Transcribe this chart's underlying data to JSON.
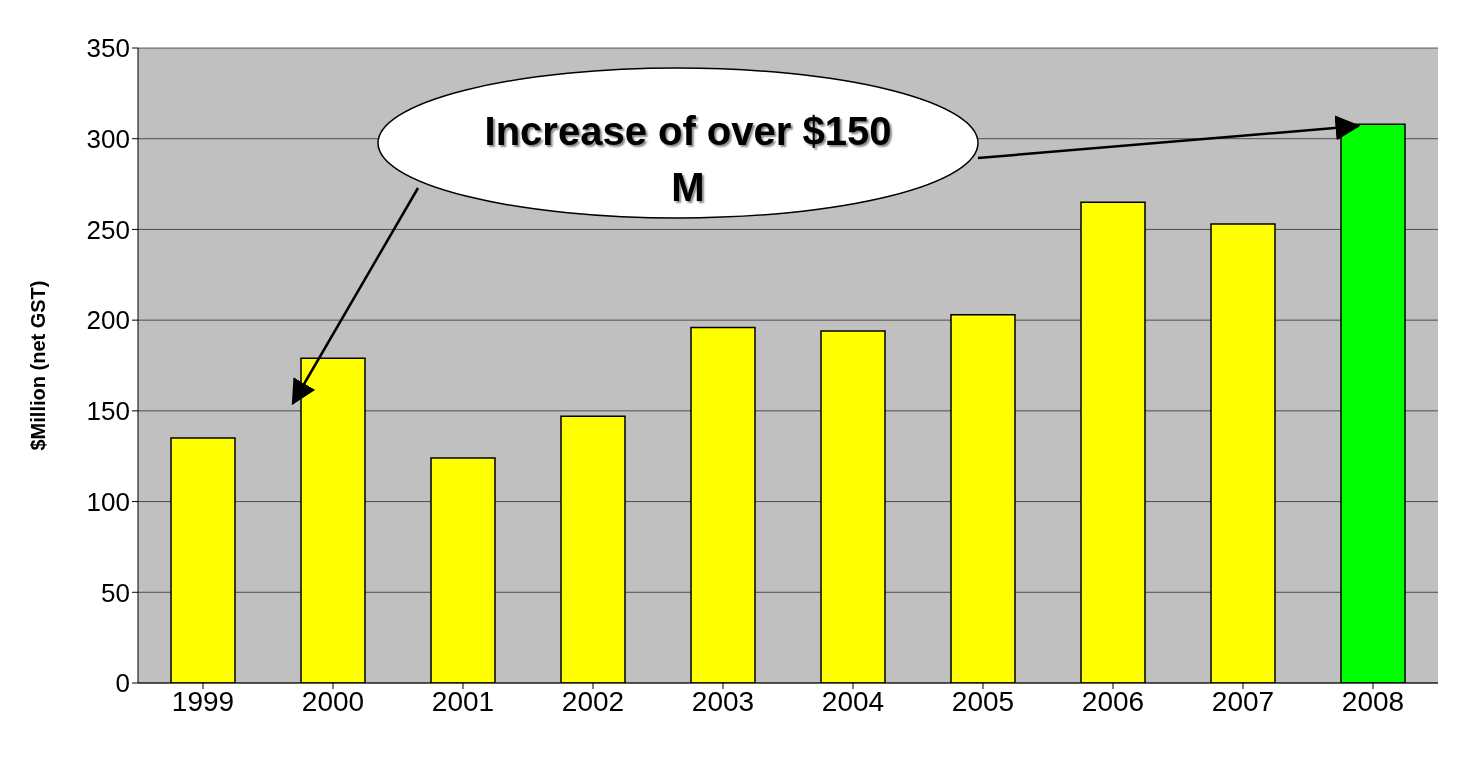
{
  "chart_data": {
    "type": "bar",
    "ylabel": "$Million (net GST)",
    "categories": [
      "1999",
      "2000",
      "2001",
      "2002",
      "2003",
      "2004",
      "2005",
      "2006",
      "2007",
      "2008"
    ],
    "values": [
      135,
      179,
      124,
      147,
      196,
      194,
      203,
      265,
      253,
      308
    ],
    "colors": [
      "#ffff00",
      "#ffff00",
      "#ffff00",
      "#ffff00",
      "#ffff00",
      "#ffff00",
      "#ffff00",
      "#ffff00",
      "#ffff00",
      "#00ff00"
    ],
    "ylim": [
      0,
      350
    ],
    "yticks": [
      0,
      50,
      100,
      150,
      200,
      250,
      300,
      350
    ],
    "grid": "y",
    "annotations": [
      "Increase of over $150 M"
    ]
  }
}
